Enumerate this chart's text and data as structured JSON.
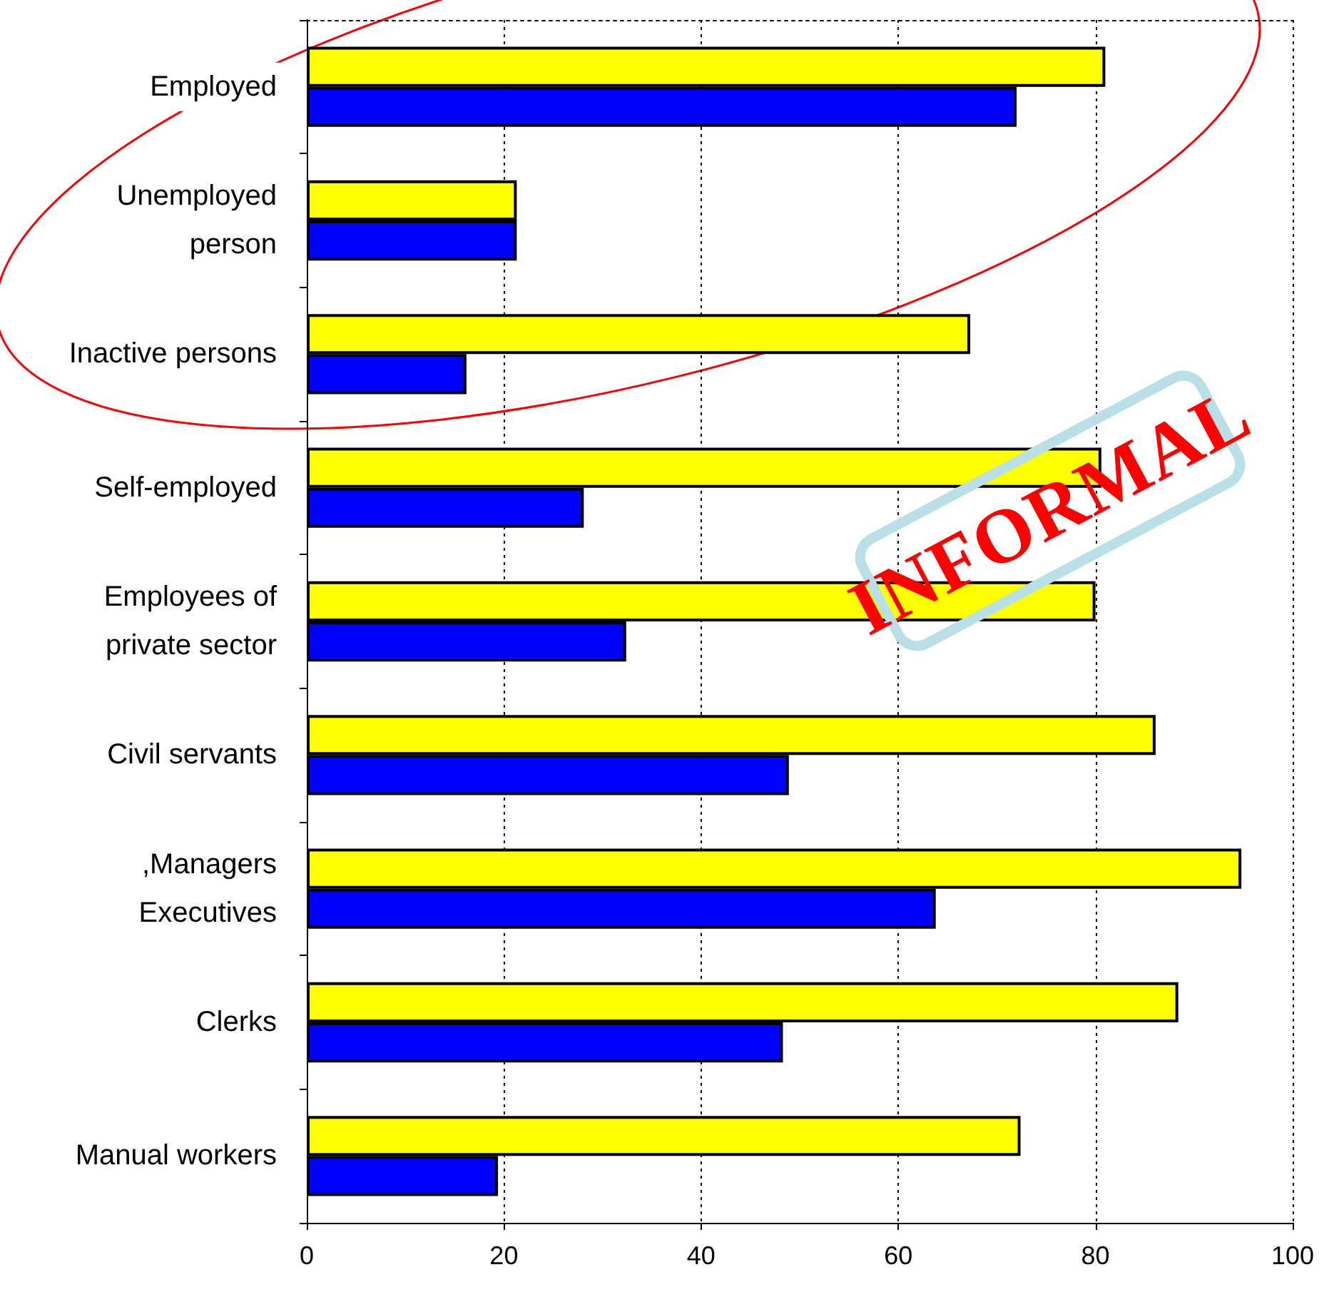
{
  "chart_data": {
    "type": "bar",
    "orientation": "horizontal",
    "categories": [
      "Employed",
      "Unemployed\nperson",
      "Inactive persons",
      "Self-employed",
      "Employees of\nprivate sector",
      "Civil servants",
      ",Managers\nExecutives",
      "Clerks",
      "Manual workers"
    ],
    "series": [
      {
        "color": "#ffff00",
        "values": [
          81,
          21.3,
          67.3,
          80.6,
          80,
          86.1,
          94.8,
          88.4,
          72.4
        ]
      },
      {
        "color": "#0000ff",
        "values": [
          72,
          21.3,
          16.2,
          28.1,
          32.4,
          48.9,
          63.8,
          48.3,
          19.4
        ]
      }
    ],
    "xlim": [
      0,
      100
    ],
    "xticks": [
      0,
      20,
      40,
      60,
      80,
      100
    ],
    "grid": "x",
    "annotations": [
      "INFORMAL"
    ]
  }
}
